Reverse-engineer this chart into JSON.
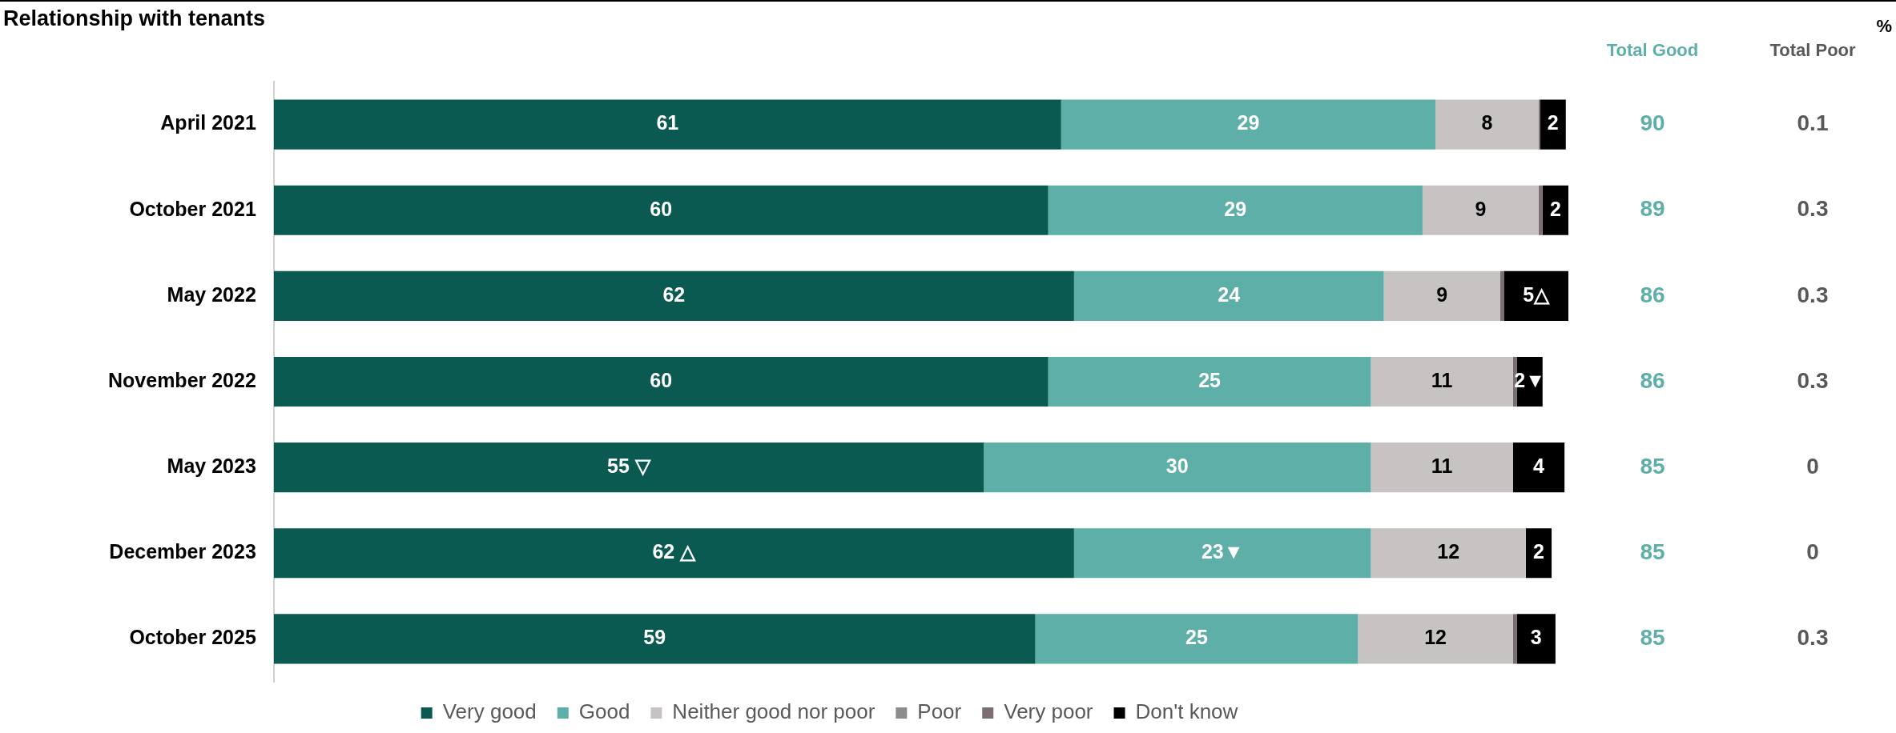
{
  "chart_data": {
    "type": "bar",
    "orientation": "horizontal",
    "stacked": true,
    "title": "Relationship with tenants",
    "categories": [
      "April 2021",
      "October 2021",
      "May 2022",
      "November 2022",
      "May 2023",
      "December 2023",
      "October 2025"
    ],
    "xlim": [
      0,
      100.3
    ],
    "legend": "bottom",
    "grid": false,
    "tick_labels": "y",
    "series": [
      {
        "name": "Very good",
        "color": "#0b5a52",
        "values": [
          61,
          60,
          62,
          60,
          55,
          62,
          59
        ],
        "value_labels": [
          "61",
          "60",
          "62",
          "60",
          "55 ▽",
          "62 △",
          "59"
        ]
      },
      {
        "name": "Good",
        "color": "#5dafa8",
        "values": [
          29,
          29,
          24,
          25,
          30,
          23,
          25
        ],
        "value_labels": [
          "29",
          "29",
          "24",
          "25",
          "30",
          "23▼",
          "25"
        ]
      },
      {
        "name": "Neither good nor poor",
        "color": "#c8c3c3",
        "values": [
          8,
          9,
          9,
          11,
          11,
          12,
          12
        ],
        "value_labels": [
          "8",
          "9",
          "9",
          "11",
          "11",
          "12",
          "12"
        ]
      },
      {
        "name": "Poor",
        "color": "#8c8c8c",
        "values": [
          0,
          0,
          0,
          0,
          0,
          0,
          0
        ]
      },
      {
        "name": "Very poor",
        "color": "#7a6e70",
        "values": [
          0.1,
          0.3,
          0.3,
          0.3,
          0,
          0,
          0.3
        ]
      },
      {
        "name": "Don't know",
        "color": "#000000",
        "values": [
          2,
          2,
          5,
          2,
          4,
          2,
          3
        ],
        "value_labels": [
          "2",
          "2",
          "5△",
          "2▼",
          "4",
          "2",
          "3"
        ]
      }
    ],
    "annotations": [
      "Total Good",
      "Total Poor",
      "%",
      "90",
      "0.1",
      "89",
      "0.3",
      "86",
      "0.3",
      "86",
      "0.3",
      "85",
      "0",
      "85",
      "0",
      "85",
      "0.3"
    ]
  }
}
